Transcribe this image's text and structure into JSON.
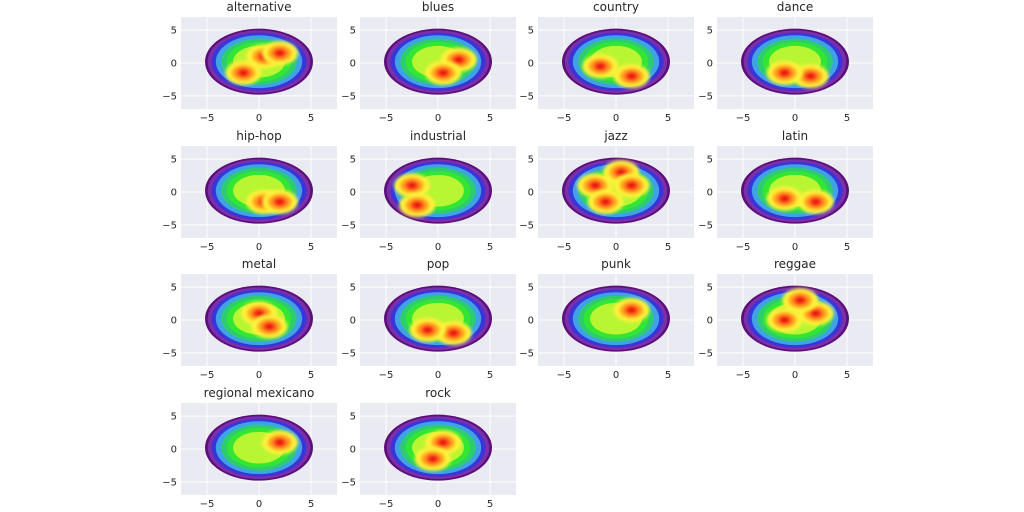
{
  "chart_data": [
    {
      "type": "heatmap",
      "title": "alternative",
      "xlim": [
        -7.5,
        7.5
      ],
      "ylim": [
        -7,
        7
      ],
      "xticks": [
        "−5",
        "0",
        "5"
      ],
      "yticks": [
        "5",
        "0",
        "−5"
      ],
      "grid": true,
      "hotspots": [
        [
          0.5,
          1.0
        ],
        [
          -1.5,
          -1.5
        ],
        [
          2.0,
          1.5
        ]
      ]
    },
    {
      "type": "heatmap",
      "title": "blues",
      "xlim": [
        -7.5,
        7.5
      ],
      "ylim": [
        -7,
        7
      ],
      "xticks": [
        "−5",
        "0",
        "5"
      ],
      "yticks": [
        "5",
        "0",
        "−5"
      ],
      "grid": true,
      "hotspots": [
        [
          2.0,
          0.5
        ],
        [
          0.5,
          -1.5
        ]
      ]
    },
    {
      "type": "heatmap",
      "title": "country",
      "xlim": [
        -7.5,
        7.5
      ],
      "ylim": [
        -7,
        7
      ],
      "xticks": [
        "−5",
        "0",
        "5"
      ],
      "yticks": [
        "5",
        "0",
        "−5"
      ],
      "grid": true,
      "hotspots": [
        [
          1.5,
          -2.0
        ],
        [
          -1.5,
          -0.5
        ]
      ]
    },
    {
      "type": "heatmap",
      "title": "dance",
      "xlim": [
        -7.5,
        7.5
      ],
      "ylim": [
        -7,
        7
      ],
      "xticks": [
        "−5",
        "0",
        "5"
      ],
      "yticks": [
        "5",
        "0",
        "−5"
      ],
      "grid": true,
      "hotspots": [
        [
          1.5,
          -2.0
        ],
        [
          -1.0,
          -1.5
        ]
      ]
    },
    {
      "type": "heatmap",
      "title": "hip-hop",
      "xlim": [
        -7.5,
        7.5
      ],
      "ylim": [
        -7,
        7
      ],
      "xticks": [
        "−5",
        "0",
        "5"
      ],
      "yticks": [
        "5",
        "0",
        "−5"
      ],
      "grid": true,
      "hotspots": [
        [
          0.5,
          -1.5
        ],
        [
          2.0,
          -1.5
        ]
      ]
    },
    {
      "type": "heatmap",
      "title": "industrial",
      "xlim": [
        -7.5,
        7.5
      ],
      "ylim": [
        -7,
        7
      ],
      "xticks": [
        "−5",
        "0",
        "5"
      ],
      "yticks": [
        "5",
        "0",
        "−5"
      ],
      "grid": true,
      "hotspots": [
        [
          -2.5,
          1.0
        ],
        [
          -2.0,
          -2.0
        ]
      ]
    },
    {
      "type": "heatmap",
      "title": "jazz",
      "xlim": [
        -7.5,
        7.5
      ],
      "ylim": [
        -7,
        7
      ],
      "xticks": [
        "−5",
        "0",
        "5"
      ],
      "yticks": [
        "5",
        "0",
        "−5"
      ],
      "grid": true,
      "hotspots": [
        [
          -2.0,
          1.0
        ],
        [
          0.5,
          3.0
        ],
        [
          1.5,
          1.0
        ],
        [
          -1.0,
          -1.5
        ]
      ]
    },
    {
      "type": "heatmap",
      "title": "latin",
      "xlim": [
        -7.5,
        7.5
      ],
      "ylim": [
        -7,
        7
      ],
      "xticks": [
        "−5",
        "0",
        "5"
      ],
      "yticks": [
        "5",
        "0",
        "−5"
      ],
      "grid": true,
      "hotspots": [
        [
          2.0,
          -1.5
        ],
        [
          -1.0,
          -1.0
        ]
      ]
    },
    {
      "type": "heatmap",
      "title": "metal",
      "xlim": [
        -7.5,
        7.5
      ],
      "ylim": [
        -7,
        7
      ],
      "xticks": [
        "−5",
        "0",
        "5"
      ],
      "yticks": [
        "5",
        "0",
        "−5"
      ],
      "grid": true,
      "hotspots": [
        [
          0.0,
          1.0
        ],
        [
          1.0,
          -1.0
        ]
      ]
    },
    {
      "type": "heatmap",
      "title": "pop",
      "xlim": [
        -7.5,
        7.5
      ],
      "ylim": [
        -7,
        7
      ],
      "xticks": [
        "−5",
        "0",
        "5"
      ],
      "yticks": [
        "5",
        "0",
        "−5"
      ],
      "grid": true,
      "hotspots": [
        [
          1.5,
          -2.0
        ],
        [
          -1.0,
          -1.5
        ]
      ]
    },
    {
      "type": "heatmap",
      "title": "punk",
      "xlim": [
        -7.5,
        7.5
      ],
      "ylim": [
        -7,
        7
      ],
      "xticks": [
        "−5",
        "0",
        "5"
      ],
      "yticks": [
        "5",
        "0",
        "−5"
      ],
      "grid": true,
      "hotspots": [
        [
          1.5,
          1.5
        ]
      ]
    },
    {
      "type": "heatmap",
      "title": "reggae",
      "xlim": [
        -7.5,
        7.5
      ],
      "ylim": [
        -7,
        7
      ],
      "xticks": [
        "−5",
        "0",
        "5"
      ],
      "yticks": [
        "5",
        "0",
        "−5"
      ],
      "grid": true,
      "hotspots": [
        [
          2.0,
          1.0
        ],
        [
          -1.0,
          0.0
        ],
        [
          0.5,
          3.0
        ]
      ]
    },
    {
      "type": "heatmap",
      "title": "regional mexicano",
      "xlim": [
        -7.5,
        7.5
      ],
      "ylim": [
        -7,
        7
      ],
      "xticks": [
        "−5",
        "0",
        "5"
      ],
      "yticks": [
        "5",
        "0",
        "−5"
      ],
      "grid": true,
      "hotspots": [
        [
          2.0,
          1.0
        ]
      ]
    },
    {
      "type": "heatmap",
      "title": "rock",
      "xlim": [
        -7.5,
        7.5
      ],
      "ylim": [
        -7,
        7
      ],
      "xticks": [
        "−5",
        "0",
        "5"
      ],
      "yticks": [
        "5",
        "0",
        "−5"
      ],
      "grid": true,
      "hotspots": [
        [
          0.5,
          1.0
        ],
        [
          -0.5,
          -1.5
        ]
      ]
    }
  ],
  "colors": {
    "background": "#EAEAF2",
    "grid": "#FFFFFF",
    "levels": [
      "#5C0F7A",
      "#7B2FA8",
      "#3A35D8",
      "#3FA2E6",
      "#2ECC71",
      "#33E633",
      "#B8F533",
      "#FFF23A",
      "#FFA31A",
      "#FF3B1A",
      "#D40000"
    ]
  }
}
